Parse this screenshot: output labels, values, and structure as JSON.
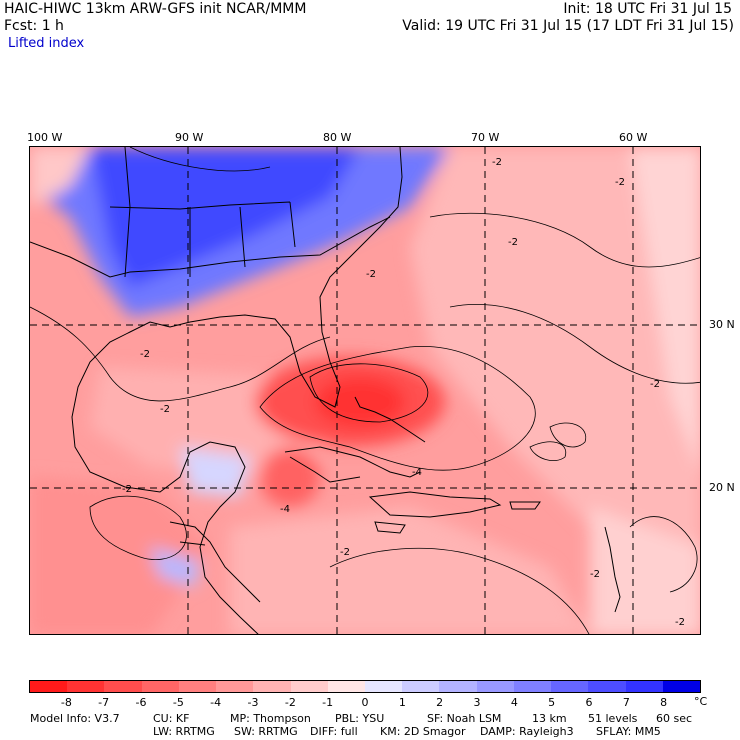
{
  "header": {
    "title": "HAIC-HIWC 13km ARW-GFS init   NCAR/MMM",
    "fcst": "Fcst:     1 h",
    "field": "Lifted index",
    "init": "Init: 18 UTC Fri 31 Jul 15",
    "valid": "Valid: 19 UTC Fri 31 Jul 15 (17 LDT Fri 31 Jul 15)"
  },
  "map": {
    "lon_labels": [
      "100 W",
      "90 W",
      "80 W",
      "70 W",
      "60 W"
    ],
    "lat_labels": [
      "30 N",
      "20 N"
    ],
    "contour_labels": [
      "-2",
      "-2",
      "-2",
      "-2",
      "-2",
      "-2",
      "-4",
      "-4",
      "-2",
      "-2",
      "-2",
      "-2",
      "-2"
    ]
  },
  "colorbar": {
    "ticks": [
      "-8",
      "-7",
      "-6",
      "-5",
      "-4",
      "-3",
      "-2",
      "-1",
      "0",
      "1",
      "2",
      "3",
      "4",
      "5",
      "6",
      "7",
      "8"
    ],
    "unit": "°C",
    "colors": [
      "#ff1a1a",
      "#ff3333",
      "#ff4d4d",
      "#ff6666",
      "#ff8080",
      "#ff9999",
      "#ffb3b3",
      "#ffcccc",
      "#ffe6e6",
      "#e6e6ff",
      "#ccccff",
      "#b3b3ff",
      "#9999ff",
      "#8080ff",
      "#6666ff",
      "#4d4dff",
      "#3333ff",
      "#0000e6"
    ]
  },
  "footer": {
    "line1": [
      "Model Info: V3.7",
      "CU: KF",
      "MP: Thompson",
      "PBL: YSU",
      "SF: Noah LSM",
      "13 km",
      "51 levels",
      "60 sec"
    ],
    "line2": [
      "LW: RRTMG",
      "SW: RRTMG",
      "DIFF: full",
      "KM: 2D Smagor",
      "DAMP: Rayleigh3",
      "SFLAY: MM5"
    ]
  }
}
